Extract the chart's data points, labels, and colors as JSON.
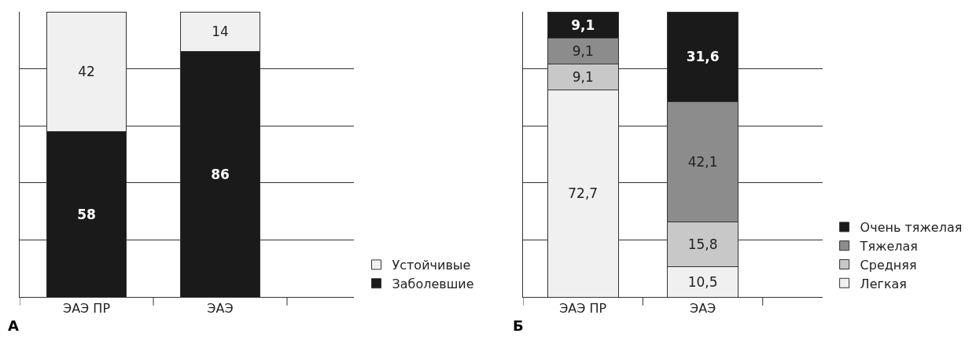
{
  "chart_data": [
    {
      "type": "bar",
      "stacked": true,
      "relative": false,
      "categories": [
        "ЭАЭ ПР",
        "ЭАЭ"
      ],
      "series": [
        {
          "name": "Заболевшие",
          "color": "#1a1a1a",
          "values": [
            58,
            86
          ]
        },
        {
          "name": "Устойчивые",
          "color": "#f0f0f0",
          "values": [
            42,
            14
          ]
        }
      ],
      "data_labels": true,
      "grid": "y",
      "tick_labels": "x",
      "legend": "bottom right",
      "annotations": [
        "А"
      ]
    },
    {
      "type": "bar",
      "stacked": true,
      "categories": [
        "ЭАЭ ПР",
        "ЭАЭ"
      ],
      "series": [
        {
          "name": "Легкая",
          "color": "#f0f0f0",
          "values": [
            72.7,
            10.5
          ],
          "value_labels": [
            "72,7",
            "10,5"
          ]
        },
        {
          "name": "Средняя",
          "color": "#c8c8c8",
          "values": [
            9.1,
            15.8
          ],
          "value_labels": [
            "9,1",
            "15,8"
          ]
        },
        {
          "name": "Тяжелая",
          "color": "#8c8c8c",
          "values": [
            9.1,
            42.1
          ],
          "value_labels": [
            "9,1",
            "42,1"
          ]
        },
        {
          "name": "Очень тяжелая",
          "color": "#1a1a1a",
          "values": [
            9.1,
            31.6
          ],
          "value_labels": [
            "9,1",
            "31,6"
          ]
        }
      ],
      "grid": "y",
      "tick_labels": "x",
      "legend": "bottom right",
      "annotations": [
        "Б"
      ]
    }
  ]
}
